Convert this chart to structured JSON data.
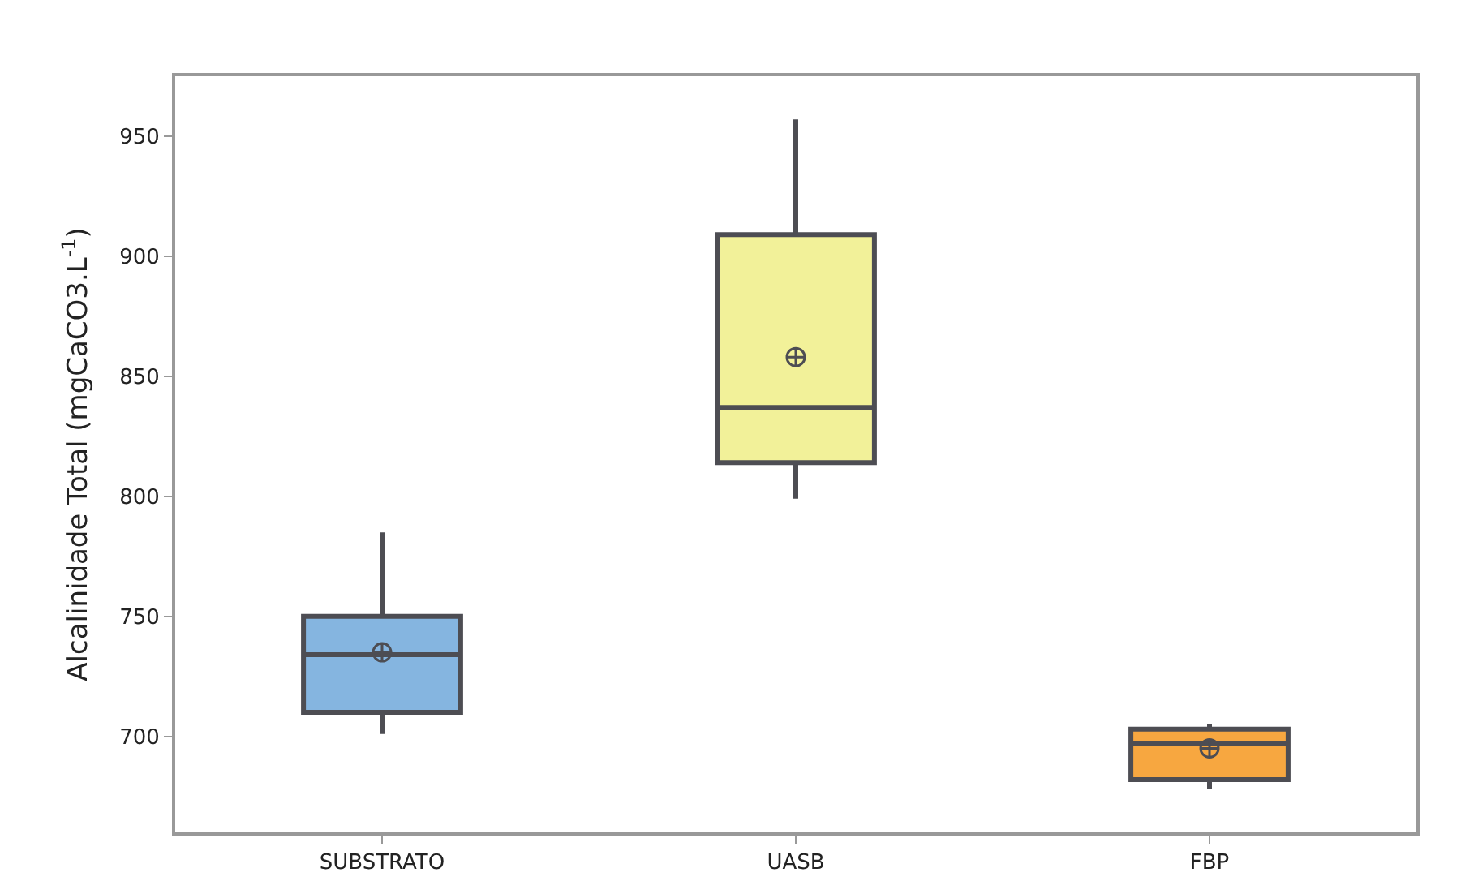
{
  "chart_data": {
    "type": "box",
    "ylabel": "Alcalinidade Total (mgCaCO3.L$^{-1}$)",
    "categories": [
      "SUBSTRATO",
      "UASB",
      "FBP"
    ],
    "colors": [
      "#85b5e0",
      "#f2f199",
      "#f7a740"
    ],
    "boxes": [
      {
        "low": 701,
        "q1": 710,
        "median": 734,
        "q3": 750,
        "high": 785,
        "mean": 735
      },
      {
        "low": 799,
        "q1": 814,
        "median": 837,
        "q3": 909,
        "high": 957,
        "mean": 858
      },
      {
        "low": 678,
        "q1": 682,
        "median": 697,
        "q3": 703,
        "high": 705,
        "mean": 695
      }
    ],
    "ylim": [
      660,
      975
    ],
    "yticks": [
      700,
      750,
      800,
      850,
      900,
      950
    ]
  }
}
